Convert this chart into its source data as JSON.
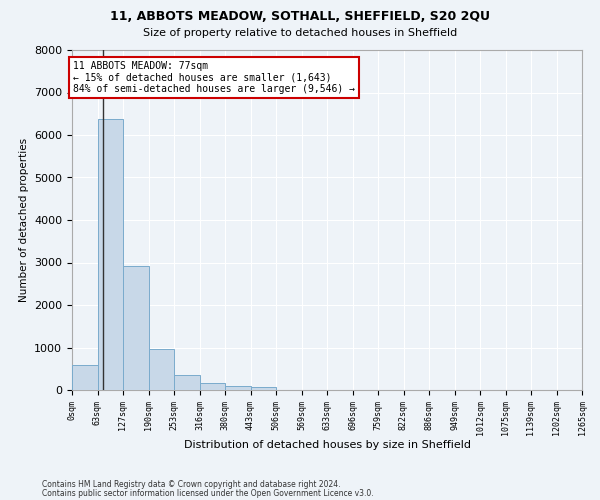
{
  "title": "11, ABBOTS MEADOW, SOTHALL, SHEFFIELD, S20 2QU",
  "subtitle": "Size of property relative to detached houses in Sheffield",
  "xlabel": "Distribution of detached houses by size in Sheffield",
  "ylabel": "Number of detached properties",
  "bar_values": [
    580,
    6380,
    2920,
    970,
    360,
    160,
    95,
    60,
    0,
    0,
    0,
    0,
    0,
    0,
    0,
    0,
    0,
    0,
    0,
    0
  ],
  "bar_labels": [
    "0sqm",
    "63sqm",
    "127sqm",
    "190sqm",
    "253sqm",
    "316sqm",
    "380sqm",
    "443sqm",
    "506sqm",
    "569sqm",
    "633sqm",
    "696sqm",
    "759sqm",
    "822sqm",
    "886sqm",
    "949sqm",
    "1012sqm",
    "1075sqm",
    "1139sqm",
    "1202sqm",
    "1265sqm"
  ],
  "bar_color": "#c8d8e8",
  "bar_edge_color": "#7aabcc",
  "vline_x": 77,
  "vline_color": "#333333",
  "annotation_text": "11 ABBOTS MEADOW: 77sqm\n← 15% of detached houses are smaller (1,643)\n84% of semi-detached houses are larger (9,546) →",
  "annotation_box_color": "#ffffff",
  "annotation_box_edge": "#cc0000",
  "ylim": [
    0,
    8000
  ],
  "yticks": [
    0,
    1000,
    2000,
    3000,
    4000,
    5000,
    6000,
    7000,
    8000
  ],
  "footnote1": "Contains HM Land Registry data © Crown copyright and database right 2024.",
  "footnote2": "Contains public sector information licensed under the Open Government Licence v3.0.",
  "background_color": "#eef3f8",
  "plot_background": "#eef3f8",
  "grid_color": "#ffffff",
  "bin_width": 63
}
